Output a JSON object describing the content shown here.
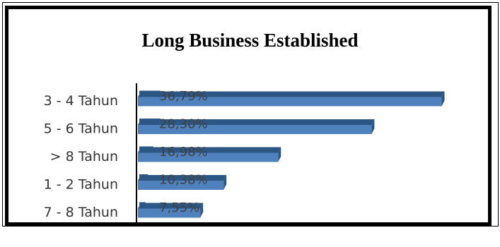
{
  "chart_data": {
    "type": "bar",
    "orientation": "horizontal",
    "style": "3d",
    "title": "Long Business Established",
    "categories": [
      "3 - 4 Tahun",
      "5 - 6 Tahun",
      "> 8 Tahun",
      "1 - 2 Tahun",
      "7 - 8 Tahun"
    ],
    "values": [
      36.79,
      28.3,
      16.98,
      10.38,
      7.55
    ],
    "value_labels": [
      "36,79%",
      "28,30%",
      "16,98%",
      "10,38%",
      "7,55%"
    ],
    "xlabel": "",
    "ylabel": "",
    "xlim": [
      0,
      40
    ],
    "grid": false,
    "legend": "none",
    "colors": {
      "bar_front": "#4F81BD",
      "bar_top": "#2C5785",
      "bar_side": "#2A5582"
    }
  }
}
